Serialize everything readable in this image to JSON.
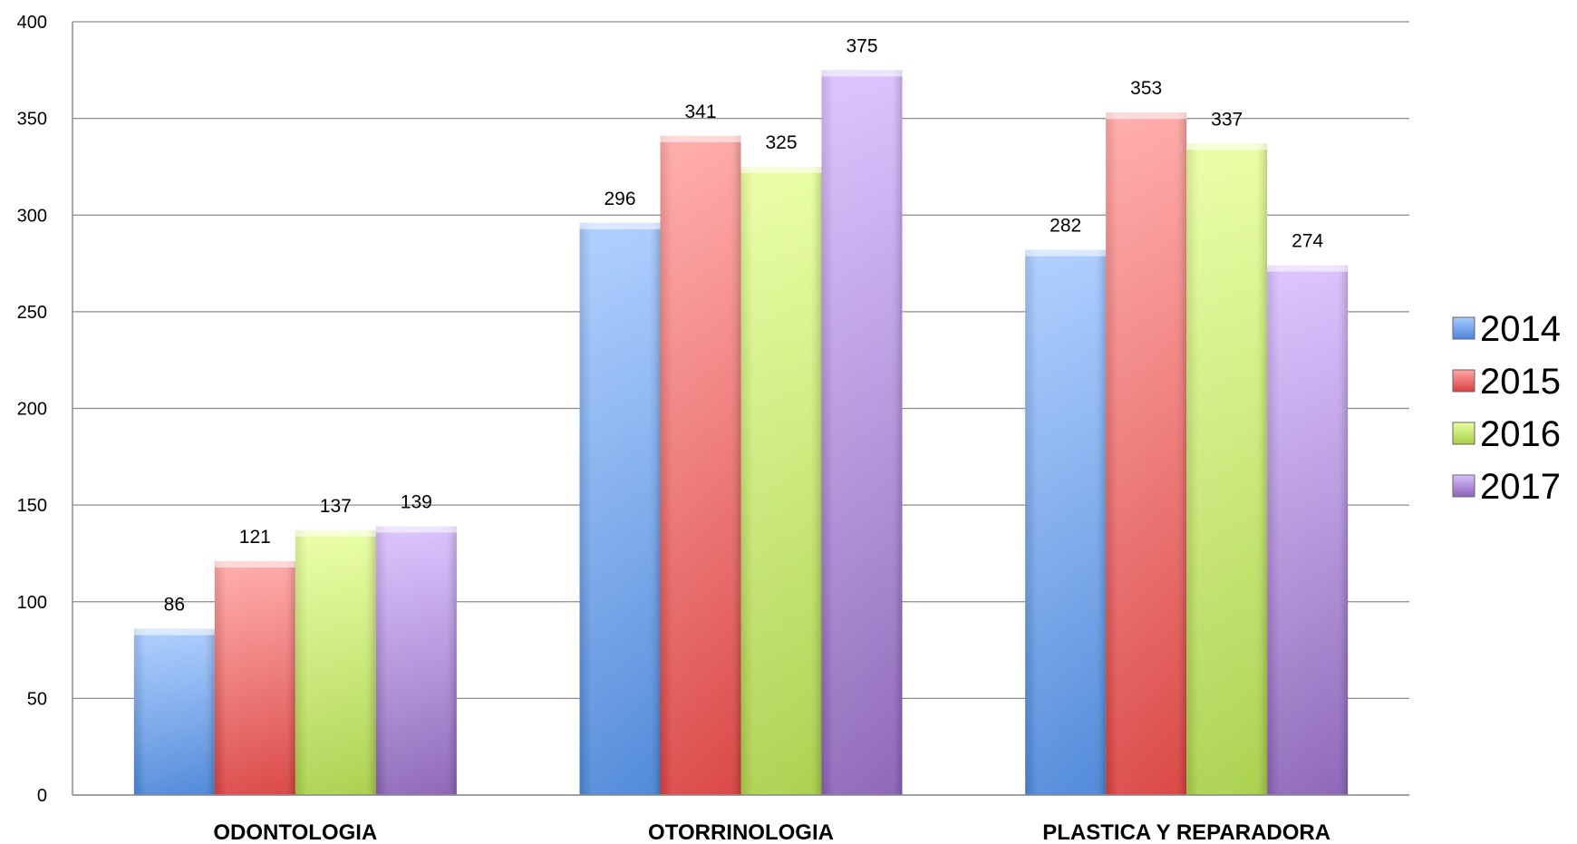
{
  "chart_data": {
    "type": "bar",
    "categories": [
      "ODONTOLOGIA",
      "OTORRINOLOGIA",
      "PLASTICA Y REPARADORA"
    ],
    "series": [
      {
        "name": "2014",
        "values": [
          86,
          296,
          282
        ],
        "color": "#4a86d8",
        "light": "#a9cbff"
      },
      {
        "name": "2015",
        "values": [
          121,
          341,
          353
        ],
        "color": "#d9403e",
        "light": "#ffa7a5"
      },
      {
        "name": "2016",
        "values": [
          137,
          325,
          337
        ],
        "color": "#a8d048",
        "light": "#e9ffa0"
      },
      {
        "name": "2017",
        "values": [
          139,
          375,
          274
        ],
        "color": "#8a62b6",
        "light": "#d9c0ff"
      }
    ],
    "title": "",
    "xlabel": "",
    "ylabel": "",
    "ylim": [
      0,
      400
    ],
    "yticks": [
      "0",
      "50",
      "100",
      "150",
      "200",
      "250",
      "300",
      "350",
      "400"
    ],
    "grid": true,
    "legend_position": "right",
    "show_data_labels": true
  }
}
